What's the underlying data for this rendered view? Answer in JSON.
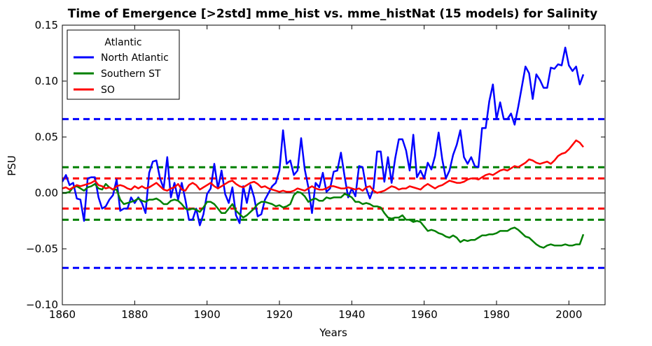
{
  "chart_data": {
    "type": "line",
    "title": "Time of Emergence [>2std] mme_hist vs. mme_histNat (15 models) for Salinity",
    "xlabel": "Years",
    "ylabel": "PSU",
    "xlim": [
      1860,
      2010
    ],
    "ylim": [
      -0.1,
      0.15
    ],
    "x_ticks": [
      "1860",
      "1880",
      "1900",
      "1920",
      "1940",
      "1960",
      "1980",
      "2000"
    ],
    "y_ticks": [
      "−0.10",
      "−0.05",
      "0.00",
      "0.05",
      "0.10",
      "0.15"
    ],
    "x_tick_values": [
      1860,
      1880,
      1900,
      1920,
      1940,
      1960,
      1980,
      2000
    ],
    "y_tick_values": [
      -0.1,
      -0.05,
      0.0,
      0.05,
      0.1,
      0.15
    ],
    "grid": false,
    "legend": {
      "title": "Atlantic",
      "placement": "upper-left",
      "entries": [
        "North Atlantic",
        "Southern ST",
        "SO"
      ]
    },
    "x_start": 1860,
    "x_end": 2004,
    "series": [
      {
        "name": "North Atlantic",
        "color": "#0000ff",
        "values": [
          0.01,
          0.016,
          0.007,
          0.009,
          -0.005,
          -0.006,
          -0.025,
          0.013,
          0.014,
          0.014,
          -0.004,
          -0.014,
          -0.012,
          -0.006,
          -0.002,
          0.012,
          -0.016,
          -0.014,
          -0.014,
          -0.004,
          -0.009,
          -0.004,
          -0.009,
          -0.018,
          0.018,
          0.028,
          0.029,
          0.013,
          0.004,
          0.032,
          -0.004,
          0.009,
          -0.006,
          0.009,
          -0.006,
          -0.024,
          -0.024,
          -0.014,
          -0.029,
          -0.019,
          -0.001,
          0.004,
          0.026,
          0.004,
          0.02,
          -0.001,
          -0.009,
          0.005,
          -0.02,
          -0.027,
          0.006,
          -0.009,
          0.007,
          -0.004,
          -0.021,
          -0.019,
          -0.006,
          0.0,
          0.006,
          0.009,
          0.02,
          0.056,
          0.026,
          0.029,
          0.016,
          0.02,
          0.049,
          0.021,
          0.005,
          -0.018,
          0.009,
          0.005,
          0.018,
          0.001,
          0.004,
          0.019,
          0.02,
          0.036,
          0.015,
          -0.004,
          0.004,
          -0.003,
          0.024,
          0.023,
          0.004,
          -0.005,
          0.004,
          0.037,
          0.037,
          0.01,
          0.032,
          0.009,
          0.031,
          0.048,
          0.048,
          0.038,
          0.02,
          0.052,
          0.014,
          0.02,
          0.013,
          0.027,
          0.021,
          0.033,
          0.054,
          0.03,
          0.013,
          0.02,
          0.034,
          0.043,
          0.056,
          0.032,
          0.026,
          0.032,
          0.024,
          0.023,
          0.058,
          0.058,
          0.082,
          0.097,
          0.066,
          0.081,
          0.066,
          0.066,
          0.071,
          0.061,
          0.077,
          0.095,
          0.113,
          0.107,
          0.084,
          0.106,
          0.101,
          0.094,
          0.094,
          0.112,
          0.111,
          0.115,
          0.114,
          0.13,
          0.114,
          0.109,
          0.113,
          0.097,
          0.106
        ]
      },
      {
        "name": "Southern ST",
        "color": "#008000",
        "values": [
          0.0,
          0.0,
          0.001,
          0.005,
          0.006,
          0.004,
          0.002,
          0.005,
          0.006,
          0.008,
          0.004,
          0.003,
          0.008,
          0.005,
          0.003,
          0.003,
          -0.006,
          -0.01,
          -0.009,
          -0.008,
          -0.007,
          -0.005,
          -0.007,
          -0.008,
          -0.006,
          -0.006,
          -0.005,
          -0.007,
          -0.01,
          -0.01,
          -0.007,
          -0.006,
          -0.007,
          -0.01,
          -0.014,
          -0.015,
          -0.014,
          -0.015,
          -0.017,
          -0.013,
          -0.008,
          -0.008,
          -0.01,
          -0.014,
          -0.018,
          -0.018,
          -0.014,
          -0.01,
          -0.016,
          -0.019,
          -0.022,
          -0.02,
          -0.017,
          -0.014,
          -0.01,
          -0.008,
          -0.008,
          -0.009,
          -0.01,
          -0.012,
          -0.011,
          -0.013,
          -0.012,
          -0.01,
          -0.002,
          0.001,
          0.0,
          -0.003,
          -0.008,
          -0.006,
          -0.005,
          -0.007,
          -0.007,
          -0.004,
          -0.005,
          -0.004,
          -0.004,
          -0.004,
          -0.001,
          -0.002,
          -0.004,
          -0.008,
          -0.008,
          -0.01,
          -0.009,
          -0.01,
          -0.012,
          -0.012,
          -0.013,
          -0.018,
          -0.022,
          -0.023,
          -0.022,
          -0.022,
          -0.02,
          -0.024,
          -0.024,
          -0.026,
          -0.025,
          -0.026,
          -0.03,
          -0.034,
          -0.033,
          -0.034,
          -0.036,
          -0.037,
          -0.039,
          -0.04,
          -0.038,
          -0.04,
          -0.044,
          -0.042,
          -0.043,
          -0.042,
          -0.042,
          -0.04,
          -0.038,
          -0.038,
          -0.037,
          -0.037,
          -0.036,
          -0.034,
          -0.034,
          -0.034,
          -0.032,
          -0.031,
          -0.033,
          -0.036,
          -0.039,
          -0.04,
          -0.043,
          -0.046,
          -0.048,
          -0.049,
          -0.047,
          -0.046,
          -0.047,
          -0.047,
          -0.047,
          -0.046,
          -0.047,
          -0.047,
          -0.046,
          -0.046,
          -0.037
        ]
      },
      {
        "name": "SO",
        "color": "#ff0000",
        "values": [
          0.004,
          0.005,
          0.003,
          0.005,
          0.007,
          0.006,
          0.007,
          0.008,
          0.009,
          0.011,
          0.007,
          0.006,
          0.004,
          0.005,
          0.003,
          0.006,
          0.007,
          0.006,
          0.004,
          0.003,
          0.006,
          0.004,
          0.006,
          0.004,
          0.005,
          0.007,
          0.009,
          0.006,
          0.003,
          0.002,
          0.004,
          0.005,
          0.008,
          0.003,
          0.002,
          0.007,
          0.009,
          0.007,
          0.003,
          0.005,
          0.007,
          0.009,
          0.006,
          0.004,
          0.006,
          0.008,
          0.01,
          0.011,
          0.008,
          0.006,
          0.005,
          0.007,
          0.009,
          0.01,
          0.008,
          0.005,
          0.006,
          0.004,
          0.003,
          0.002,
          0.001,
          0.002,
          0.001,
          0.001,
          0.002,
          0.004,
          0.003,
          0.002,
          0.004,
          0.006,
          0.004,
          0.003,
          0.003,
          0.004,
          0.006,
          0.006,
          0.005,
          0.004,
          0.004,
          0.005,
          0.004,
          0.003,
          0.004,
          0.002,
          0.005,
          0.006,
          0.002,
          0.0,
          0.001,
          0.002,
          0.004,
          0.006,
          0.005,
          0.003,
          0.004,
          0.004,
          0.006,
          0.005,
          0.004,
          0.003,
          0.006,
          0.008,
          0.006,
          0.004,
          0.006,
          0.007,
          0.009,
          0.011,
          0.01,
          0.009,
          0.009,
          0.01,
          0.012,
          0.013,
          0.013,
          0.012,
          0.014,
          0.016,
          0.017,
          0.016,
          0.018,
          0.02,
          0.021,
          0.02,
          0.022,
          0.024,
          0.023,
          0.025,
          0.027,
          0.03,
          0.029,
          0.027,
          0.026,
          0.027,
          0.028,
          0.026,
          0.029,
          0.033,
          0.035,
          0.036,
          0.039,
          0.043,
          0.047,
          0.045,
          0.041
        ]
      }
    ],
    "thresholds": [
      {
        "series": "North Atlantic",
        "color": "#0000ff",
        "values": [
          0.066,
          -0.067
        ]
      },
      {
        "series": "Southern ST",
        "color": "#008000",
        "values": [
          0.023,
          -0.024
        ]
      },
      {
        "series": "SO",
        "color": "#ff0000",
        "values": [
          0.013,
          -0.014
        ]
      }
    ],
    "zero_line": 0.0
  }
}
